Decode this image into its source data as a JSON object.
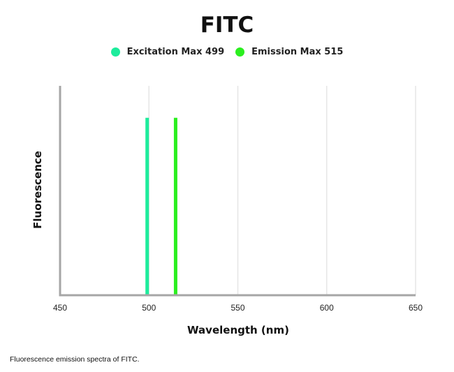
{
  "chart_data": {
    "type": "bar",
    "title": "FITC",
    "xlabel": "Wavelength (nm)",
    "ylabel": "Fluorescence",
    "xlim": [
      450,
      650
    ],
    "xticks": [
      450,
      500,
      550,
      600,
      650
    ],
    "grid": "vertical",
    "legend_placement": "top",
    "series": [
      {
        "name": "Excitation Max 499",
        "x": 499,
        "value": 1,
        "color": "#1dec9c"
      },
      {
        "name": "Emission Max 515",
        "x": 515,
        "value": 1,
        "color": "#2bef1f"
      }
    ]
  },
  "caption": "Fluorescence emission spectra of FITC."
}
